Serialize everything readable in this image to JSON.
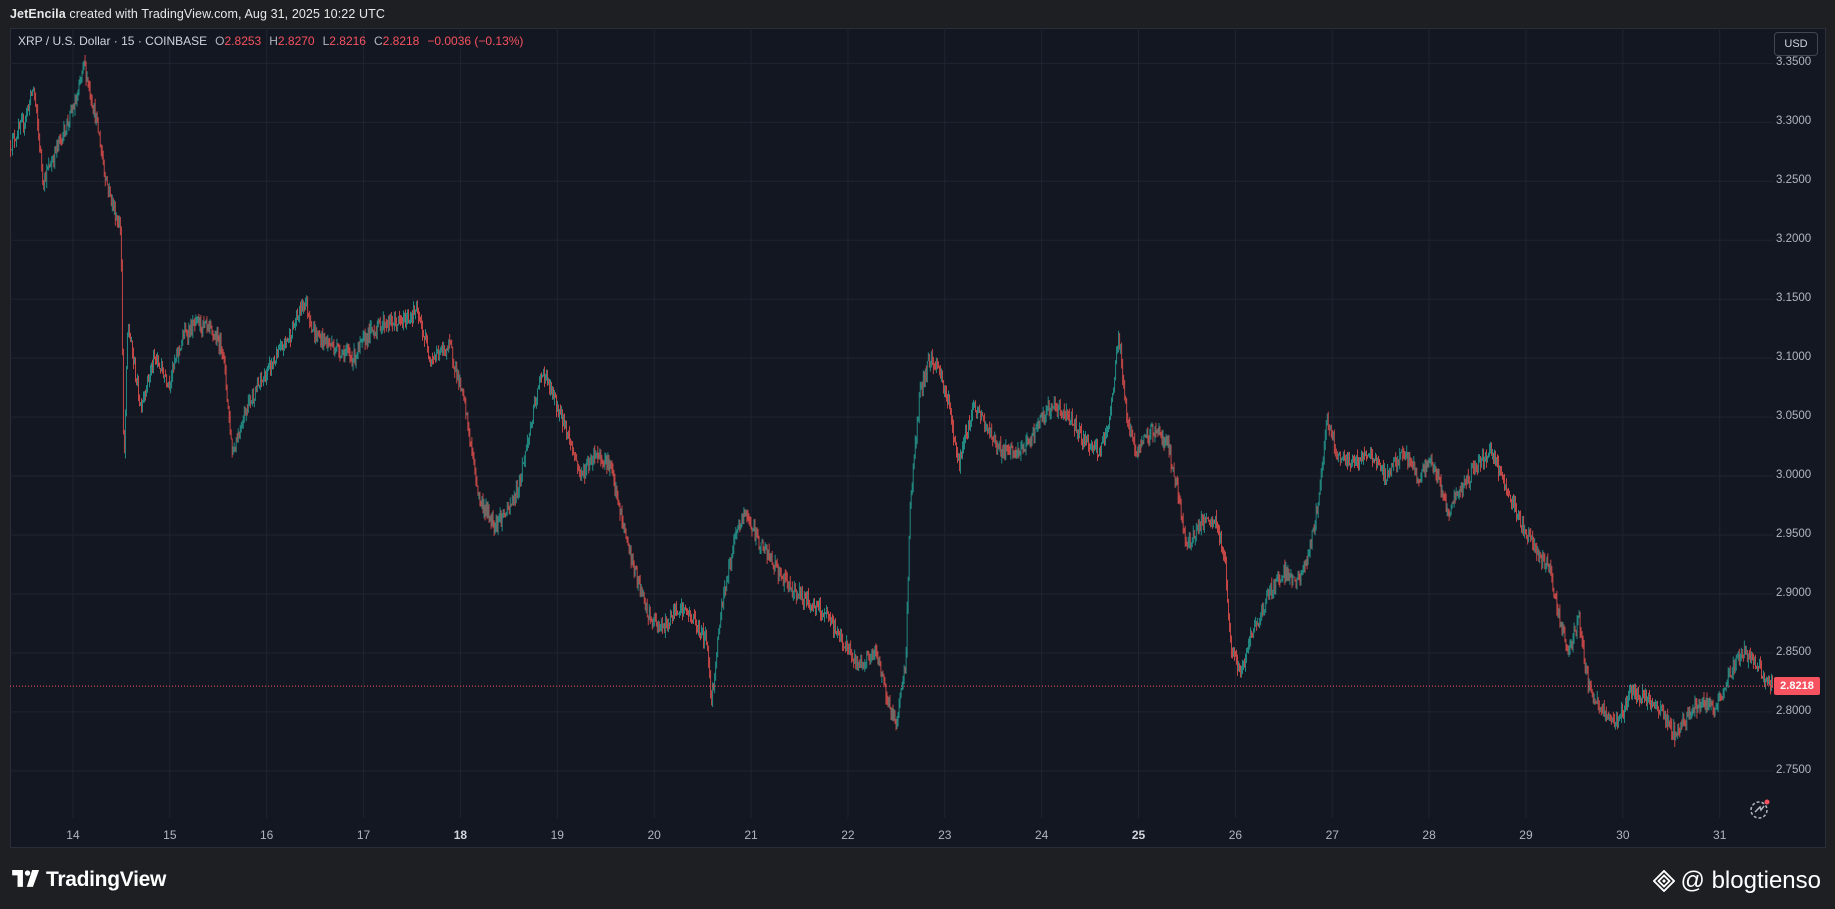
{
  "header": {
    "author": "JetEncila",
    "credit_rest": "created with TradingView.com, Aug 31, 2025 10:22 UTC"
  },
  "legend": {
    "symbol": "XRP / U.S. Dollar · 15 · COINBASE",
    "o_label": "O",
    "o_value": "2.8253",
    "h_label": "H",
    "h_value": "2.8270",
    "l_label": "L",
    "l_value": "2.8216",
    "c_label": "C",
    "c_value": "2.8218",
    "change": "−0.0036 (−0.13%)"
  },
  "toolbar": {
    "currency_label": "USD"
  },
  "colors": {
    "background": "#131722",
    "grid": "#1f2430",
    "up": "#26a69a",
    "down": "#ef5350",
    "last_price": "#f7525f"
  },
  "footer": {
    "brand": "TradingView",
    "watermark": "@ blogtienso"
  },
  "icons": {
    "replay": "replay-icon",
    "brand_logo": "tradingview-logo-icon",
    "watermark_logo": "binance-diamond-icon"
  },
  "chart_data": {
    "type": "candlestick",
    "title": "XRP / U.S. Dollar · 15 · COINBASE",
    "interval": "15",
    "currency": "USD",
    "last_price": 2.8218,
    "last_price_label": "2.8218",
    "ylim": [
      2.71,
      3.38
    ],
    "y_ticks": [
      "3.3500",
      "3.3000",
      "3.2500",
      "3.2000",
      "3.1500",
      "3.1000",
      "3.0500",
      "3.0000",
      "2.9500",
      "2.9000",
      "2.8500",
      "2.8000",
      "2.7500"
    ],
    "x_ticks": [
      {
        "label": "14",
        "day": 14
      },
      {
        "label": "15",
        "day": 15
      },
      {
        "label": "16",
        "day": 16
      },
      {
        "label": "17",
        "day": 17
      },
      {
        "label": "18",
        "day": 18
      },
      {
        "label": "19",
        "day": 19
      },
      {
        "label": "20",
        "day": 20
      },
      {
        "label": "21",
        "day": 21
      },
      {
        "label": "22",
        "day": 22
      },
      {
        "label": "23",
        "day": 23
      },
      {
        "label": "24",
        "day": 24
      },
      {
        "label": "25",
        "day": 25
      },
      {
        "label": "26",
        "day": 26
      },
      {
        "label": "27",
        "day": 27
      },
      {
        "label": "28",
        "day": 28
      },
      {
        "label": "29",
        "day": 29
      },
      {
        "label": "30",
        "day": 30
      },
      {
        "label": "31",
        "day": 31
      }
    ],
    "bold_x_ticks": [
      "18",
      "25"
    ],
    "xlim": [
      13.35,
      31.55
    ],
    "grid": true,
    "price_path": [
      [
        13.35,
        3.28
      ],
      [
        13.5,
        3.3
      ],
      [
        13.6,
        3.33
      ],
      [
        13.7,
        3.25
      ],
      [
        13.85,
        3.28
      ],
      [
        13.95,
        3.3
      ],
      [
        14.05,
        3.32
      ],
      [
        14.12,
        3.35
      ],
      [
        14.25,
        3.3
      ],
      [
        14.35,
        3.25
      ],
      [
        14.45,
        3.22
      ],
      [
        14.5,
        3.21
      ],
      [
        14.53,
        3.0
      ],
      [
        14.57,
        3.13
      ],
      [
        14.7,
        3.06
      ],
      [
        14.85,
        3.1
      ],
      [
        15.0,
        3.08
      ],
      [
        15.15,
        3.12
      ],
      [
        15.3,
        3.13
      ],
      [
        15.45,
        3.12
      ],
      [
        15.55,
        3.11
      ],
      [
        15.65,
        3.02
      ],
      [
        15.8,
        3.06
      ],
      [
        15.95,
        3.08
      ],
      [
        16.1,
        3.1
      ],
      [
        16.25,
        3.12
      ],
      [
        16.4,
        3.15
      ],
      [
        16.5,
        3.12
      ],
      [
        16.7,
        3.11
      ],
      [
        16.9,
        3.1
      ],
      [
        17.05,
        3.12
      ],
      [
        17.2,
        3.13
      ],
      [
        17.4,
        3.13
      ],
      [
        17.55,
        3.14
      ],
      [
        17.7,
        3.1
      ],
      [
        17.9,
        3.11
      ],
      [
        18.05,
        3.06
      ],
      [
        18.2,
        2.98
      ],
      [
        18.35,
        2.96
      ],
      [
        18.5,
        2.97
      ],
      [
        18.6,
        2.99
      ],
      [
        18.75,
        3.05
      ],
      [
        18.85,
        3.09
      ],
      [
        18.95,
        3.07
      ],
      [
        19.1,
        3.04
      ],
      [
        19.25,
        3.0
      ],
      [
        19.4,
        3.02
      ],
      [
        19.55,
        3.01
      ],
      [
        19.65,
        2.97
      ],
      [
        19.8,
        2.92
      ],
      [
        19.95,
        2.88
      ],
      [
        20.1,
        2.87
      ],
      [
        20.25,
        2.89
      ],
      [
        20.4,
        2.88
      ],
      [
        20.55,
        2.86
      ],
      [
        20.6,
        2.81
      ],
      [
        20.7,
        2.89
      ],
      [
        20.85,
        2.95
      ],
      [
        20.95,
        2.97
      ],
      [
        21.05,
        2.95
      ],
      [
        21.2,
        2.93
      ],
      [
        21.35,
        2.91
      ],
      [
        21.5,
        2.9
      ],
      [
        21.65,
        2.89
      ],
      [
        21.8,
        2.88
      ],
      [
        21.95,
        2.86
      ],
      [
        22.1,
        2.84
      ],
      [
        22.3,
        2.85
      ],
      [
        22.45,
        2.8
      ],
      [
        22.5,
        2.79
      ],
      [
        22.6,
        2.84
      ],
      [
        22.65,
        2.98
      ],
      [
        22.75,
        3.07
      ],
      [
        22.85,
        3.1
      ],
      [
        22.95,
        3.09
      ],
      [
        23.05,
        3.06
      ],
      [
        23.15,
        3.01
      ],
      [
        23.3,
        3.06
      ],
      [
        23.45,
        3.04
      ],
      [
        23.6,
        3.02
      ],
      [
        23.8,
        3.02
      ],
      [
        23.95,
        3.04
      ],
      [
        24.1,
        3.06
      ],
      [
        24.3,
        3.05
      ],
      [
        24.45,
        3.03
      ],
      [
        24.6,
        3.02
      ],
      [
        24.7,
        3.04
      ],
      [
        24.8,
        3.12
      ],
      [
        24.9,
        3.04
      ],
      [
        25.0,
        3.02
      ],
      [
        25.15,
        3.04
      ],
      [
        25.3,
        3.03
      ],
      [
        25.4,
        2.99
      ],
      [
        25.5,
        2.94
      ],
      [
        25.65,
        2.96
      ],
      [
        25.8,
        2.96
      ],
      [
        25.9,
        2.93
      ],
      [
        25.95,
        2.86
      ],
      [
        26.05,
        2.83
      ],
      [
        26.2,
        2.87
      ],
      [
        26.35,
        2.9
      ],
      [
        26.5,
        2.92
      ],
      [
        26.65,
        2.91
      ],
      [
        26.75,
        2.93
      ],
      [
        26.85,
        2.97
      ],
      [
        26.95,
        3.05
      ],
      [
        27.05,
        3.02
      ],
      [
        27.2,
        3.01
      ],
      [
        27.4,
        3.02
      ],
      [
        27.55,
        3.0
      ],
      [
        27.75,
        3.02
      ],
      [
        27.9,
        3.0
      ],
      [
        28.05,
        3.01
      ],
      [
        28.2,
        2.97
      ],
      [
        28.35,
        2.99
      ],
      [
        28.5,
        3.01
      ],
      [
        28.65,
        3.02
      ],
      [
        28.8,
        2.99
      ],
      [
        28.95,
        2.96
      ],
      [
        29.1,
        2.94
      ],
      [
        29.25,
        2.92
      ],
      [
        29.35,
        2.88
      ],
      [
        29.45,
        2.85
      ],
      [
        29.55,
        2.88
      ],
      [
        29.65,
        2.82
      ],
      [
        29.8,
        2.8
      ],
      [
        29.95,
        2.79
      ],
      [
        30.1,
        2.82
      ],
      [
        30.25,
        2.81
      ],
      [
        30.4,
        2.8
      ],
      [
        30.55,
        2.78
      ],
      [
        30.7,
        2.8
      ],
      [
        30.85,
        2.81
      ],
      [
        30.95,
        2.8
      ],
      [
        31.05,
        2.82
      ],
      [
        31.15,
        2.84
      ],
      [
        31.25,
        2.85
      ],
      [
        31.4,
        2.84
      ],
      [
        31.5,
        2.822
      ]
    ]
  }
}
